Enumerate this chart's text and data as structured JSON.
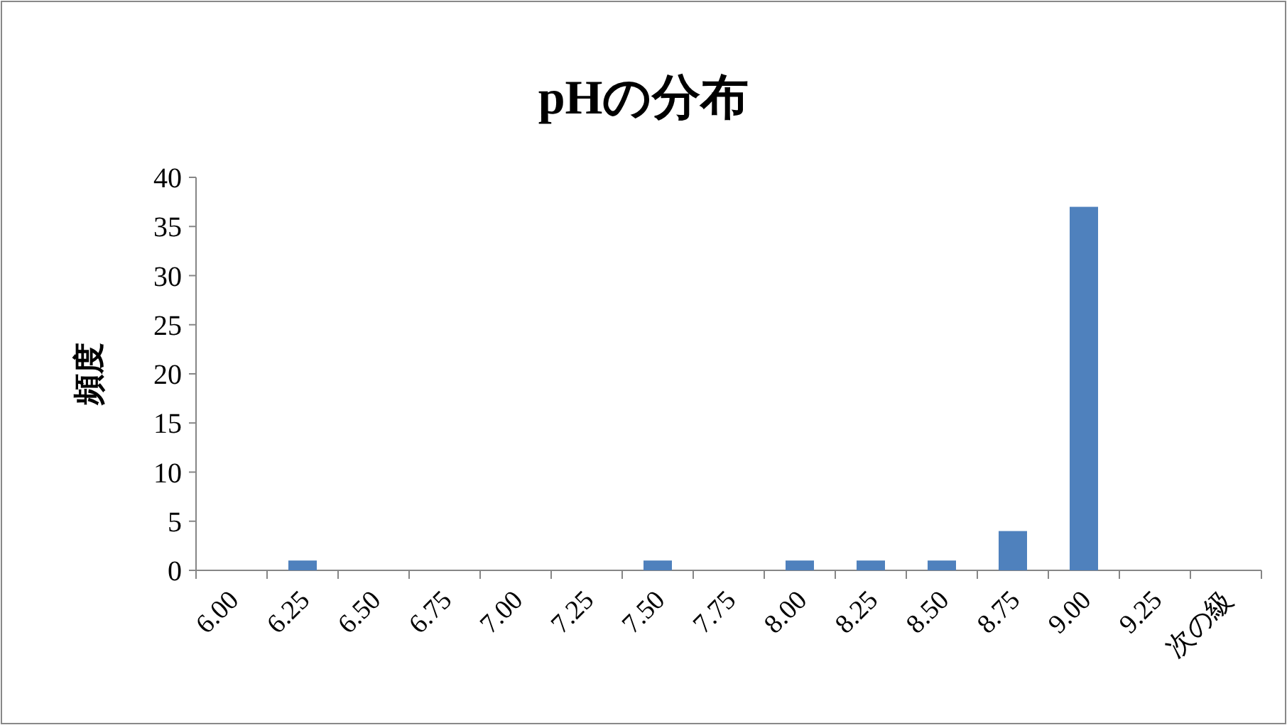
{
  "chart_data": {
    "type": "bar",
    "title": "pHの分布",
    "ylabel": "頻度",
    "categories": [
      "6.00",
      "6.25",
      "6.50",
      "6.75",
      "7.00",
      "7.25",
      "7.50",
      "7.75",
      "8.00",
      "8.25",
      "8.50",
      "8.75",
      "9.00",
      "9.25",
      "次の級"
    ],
    "values": [
      0,
      1,
      0,
      0,
      0,
      0,
      1,
      0,
      1,
      1,
      1,
      4,
      37,
      0,
      0
    ],
    "color": "#4f81bd",
    "ylim": [
      0,
      40
    ],
    "yticks": [
      0,
      5,
      10,
      15,
      20,
      25,
      30,
      35,
      40
    ]
  }
}
